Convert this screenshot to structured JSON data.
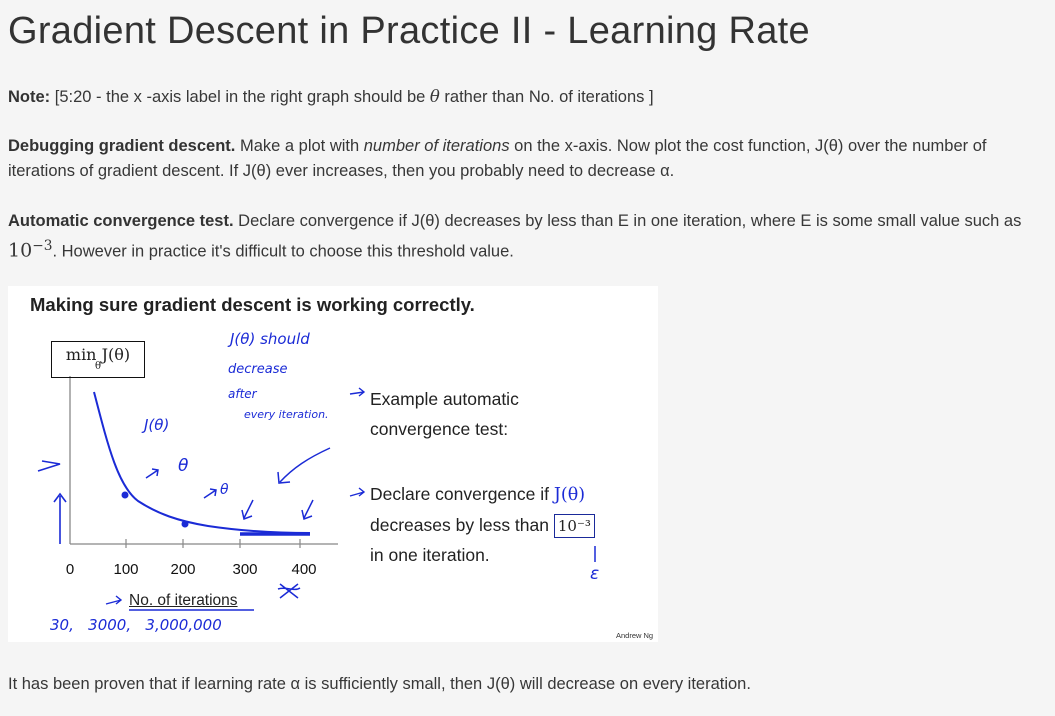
{
  "title": "Gradient Descent in Practice II - Learning Rate",
  "note": {
    "label": "Note:",
    "text_a": " [5:20 - the x -axis label in the right graph should be ",
    "theta": "θ",
    "text_b": " rather than No. of iterations ]"
  },
  "debug": {
    "label": "Debugging gradient descent.",
    "text_a": " Make a plot with ",
    "emph": "number of iterations",
    "text_b": " on the x-axis. Now plot the cost function, J(θ) over the number of iterations of gradient descent. If J(θ) ever increases, then you probably need to decrease α."
  },
  "auto": {
    "label": "Automatic convergence test.",
    "text_a": " Declare convergence if J(θ) decreases by less than E in one iteration, where E is some small value such as ",
    "ten": "10",
    "exp": "−3",
    "text_b": ". However in practice it's difficult to choose this threshold value."
  },
  "slide": {
    "title": "Making sure gradient descent is working correctly.",
    "min_label": "min J(θ)",
    "min_sub": "θ",
    "x_ticks": [
      "0",
      "100",
      "200",
      "300",
      "400"
    ],
    "x_label": "No. of iterations",
    "example_line1": "Example automatic",
    "example_line2": "convergence test:",
    "declare_line1": "Declare convergence if ",
    "declare_math": "J(θ)",
    "declare_line2": "decreases by less than ",
    "declare_box": "10⁻³",
    "declare_line3": "in one iteration.",
    "credit": "Andrew Ng",
    "hand_should": "J(θ) should",
    "hand_decrease": "decrease",
    "hand_after": "after",
    "hand_every": "every iteration.",
    "hand_jtheta": "J(θ)",
    "hand_theta_a": "θ",
    "hand_theta_b": "θ",
    "hand_epsilon": "ε",
    "hand_values": "30,   3000,   3,000,000"
  },
  "bottom": "It has been proven that if learning rate α is sufficiently small, then J(θ) will decrease on every iteration.",
  "colors": {
    "ink_blue": "#1b2bd6",
    "text": "#373737",
    "background": "#f5f5f5"
  }
}
